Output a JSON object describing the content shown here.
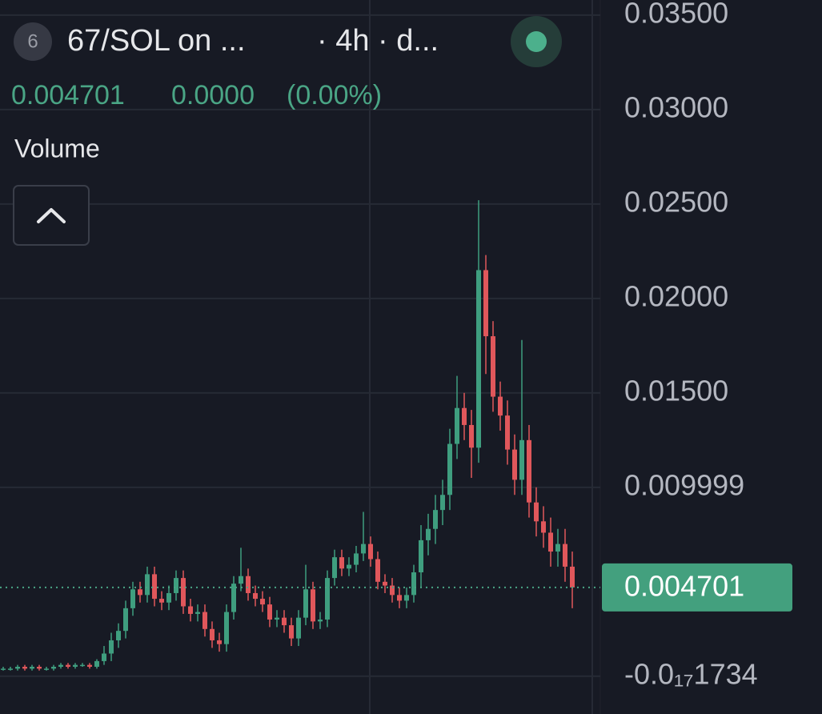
{
  "chart_data": {
    "type": "candlestick",
    "badge": "6",
    "title": "67/SOL on ...",
    "interval": "· 4h · d...",
    "last_price": 0.004701,
    "change": "0.0000",
    "change_pct": "(0.00%)",
    "indicator": "Volume",
    "up_color": "#3f9e7f",
    "down_color": "#e0575b",
    "grid": true,
    "ylim": [
      -0.002,
      0.0358
    ],
    "yticks": [
      {
        "value": 0.035,
        "label": "0.03500"
      },
      {
        "value": 0.03,
        "label": "0.03000"
      },
      {
        "value": 0.025,
        "label": "0.02500"
      },
      {
        "value": 0.02,
        "label": "0.02000"
      },
      {
        "value": 0.015,
        "label": "0.01500"
      },
      0.009999,
      {
        "value": -1.734e-18,
        "label": "-0.0₁₇1734"
      }
    ],
    "open": [
      0.0004,
      0.0004,
      0.0004,
      0.0005,
      0.0004,
      0.0005,
      0.0004,
      0.0004,
      0.0005,
      0.0006,
      0.0005,
      0.0006,
      0.0006,
      0.0005,
      0.0008,
      0.0012,
      0.0019,
      0.0024,
      0.0036,
      0.0046,
      0.0043,
      0.0054,
      0.0041,
      0.0039,
      0.0044,
      0.0052,
      0.0037,
      0.0033,
      0.0034,
      0.0025,
      0.0019,
      0.0017,
      0.0034,
      0.0049,
      0.0053,
      0.0044,
      0.0041,
      0.0038,
      0.003,
      0.0031,
      0.0027,
      0.002,
      0.0031,
      0.0046,
      0.0029,
      0.003,
      0.0052,
      0.0063,
      0.0057,
      0.0059,
      0.0065,
      0.007,
      0.0062,
      0.005,
      0.0048,
      0.0043,
      0.004,
      0.0043,
      0.0055,
      0.0072,
      0.0078,
      0.0088,
      0.0096,
      0.0123,
      0.0142,
      0.0133,
      0.0121,
      0.0215,
      0.018,
      0.0148,
      0.0138,
      0.012,
      0.0104,
      0.0125,
      0.0092,
      0.0082,
      0.0076,
      0.0066,
      0.007,
      0.0058
    ],
    "high": [
      0.0005,
      0.0005,
      0.0006,
      0.0006,
      0.0006,
      0.0006,
      0.0005,
      0.0006,
      0.0007,
      0.0007,
      0.0007,
      0.0007,
      0.0007,
      0.0009,
      0.0016,
      0.0023,
      0.0028,
      0.004,
      0.005,
      0.005,
      0.0058,
      0.0058,
      0.0045,
      0.0048,
      0.0056,
      0.0056,
      0.0041,
      0.0038,
      0.0038,
      0.0029,
      0.0023,
      0.0038,
      0.0053,
      0.0068,
      0.0057,
      0.0048,
      0.0045,
      0.0042,
      0.0035,
      0.0035,
      0.0031,
      0.0035,
      0.0059,
      0.005,
      0.0034,
      0.0056,
      0.0067,
      0.0067,
      0.0063,
      0.0069,
      0.0087,
      0.0074,
      0.0066,
      0.0054,
      0.0052,
      0.0047,
      0.0047,
      0.0059,
      0.008,
      0.0086,
      0.0096,
      0.0104,
      0.0131,
      0.0159,
      0.015,
      0.0141,
      0.0252,
      0.0223,
      0.0188,
      0.0156,
      0.0146,
      0.0128,
      0.0178,
      0.0133,
      0.01,
      0.009,
      0.0084,
      0.0078,
      0.0078,
      0.0066
    ],
    "low": [
      0.0003,
      0.0003,
      0.0003,
      0.0003,
      0.0003,
      0.0003,
      0.0003,
      0.0003,
      0.0004,
      0.0004,
      0.0004,
      0.0005,
      0.0004,
      0.0004,
      0.0006,
      0.0008,
      0.0015,
      0.002,
      0.0032,
      0.0039,
      0.0039,
      0.0037,
      0.0035,
      0.0035,
      0.004,
      0.0033,
      0.0029,
      0.0029,
      0.0021,
      0.0015,
      0.0013,
      0.0013,
      0.003,
      0.0045,
      0.004,
      0.0037,
      0.0034,
      0.0026,
      0.0026,
      0.0023,
      0.0016,
      0.0016,
      0.0027,
      0.0025,
      0.0025,
      0.0026,
      0.0048,
      0.0053,
      0.0053,
      0.0055,
      0.0061,
      0.0058,
      0.0046,
      0.0044,
      0.0039,
      0.0036,
      0.0036,
      0.0039,
      0.0047,
      0.0064,
      0.007,
      0.008,
      0.0088,
      0.0115,
      0.0125,
      0.0105,
      0.0113,
      0.016,
      0.014,
      0.013,
      0.0112,
      0.0096,
      0.0096,
      0.0084,
      0.0074,
      0.0068,
      0.0058,
      0.0058,
      0.005,
      0.0036
    ],
    "close": [
      0.0004,
      0.0004,
      0.0005,
      0.0004,
      0.0005,
      0.0004,
      0.0004,
      0.0005,
      0.0006,
      0.0005,
      0.0006,
      0.0006,
      0.0005,
      0.0008,
      0.0012,
      0.0019,
      0.0024,
      0.0036,
      0.0046,
      0.0043,
      0.0054,
      0.0041,
      0.0039,
      0.0044,
      0.0052,
      0.0037,
      0.0033,
      0.0034,
      0.0025,
      0.0019,
      0.0017,
      0.0034,
      0.0049,
      0.0053,
      0.0044,
      0.0041,
      0.0038,
      0.003,
      0.0031,
      0.0027,
      0.002,
      0.0031,
      0.0046,
      0.0029,
      0.003,
      0.0052,
      0.0063,
      0.0057,
      0.0059,
      0.0065,
      0.007,
      0.0062,
      0.005,
      0.0048,
      0.0043,
      0.004,
      0.0043,
      0.0055,
      0.0072,
      0.0078,
      0.0088,
      0.0096,
      0.0123,
      0.0142,
      0.0133,
      0.0121,
      0.0215,
      0.018,
      0.0148,
      0.0138,
      0.012,
      0.0104,
      0.0125,
      0.0092,
      0.0082,
      0.0076,
      0.0066,
      0.007,
      0.0058,
      0.0047
    ]
  }
}
